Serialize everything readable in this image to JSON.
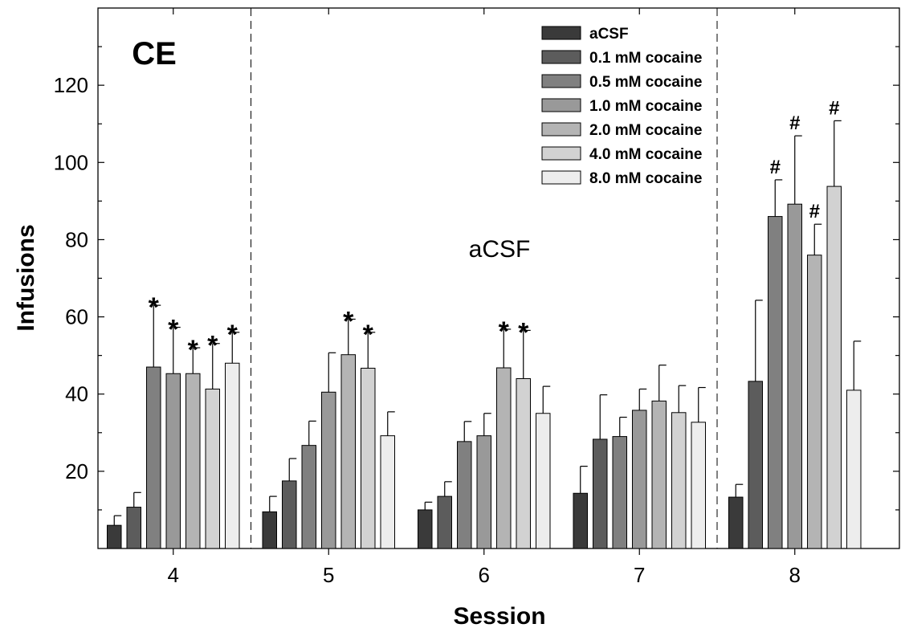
{
  "chart_data": {
    "type": "bar",
    "panel_label": "CE",
    "annotation": "aCSF",
    "xlabel": "Session",
    "ylabel": "Infusions",
    "ylim": [
      0,
      140
    ],
    "yticks": [
      20,
      40,
      60,
      80,
      100,
      120
    ],
    "categories": [
      "4",
      "5",
      "6",
      "7",
      "8"
    ],
    "legend_position": "top-right",
    "series": [
      {
        "name": "aCSF",
        "color": "#3a3a3a",
        "values": [
          6,
          9.5,
          10,
          14.3,
          13.3
        ],
        "errors": [
          2.5,
          4,
          2,
          7,
          3.3
        ],
        "marks": [
          "",
          "",
          "",
          "",
          ""
        ]
      },
      {
        "name": "0.1 mM cocaine",
        "color": "#5c5c5c",
        "values": [
          10.7,
          17.5,
          13.5,
          28.3,
          43.3
        ],
        "errors": [
          3.8,
          5.8,
          3.8,
          11.5,
          21
        ],
        "marks": [
          "",
          "",
          "",
          "",
          ""
        ]
      },
      {
        "name": "0.5 mM cocaine",
        "color": "#808080",
        "values": [
          47,
          26.7,
          27.7,
          29,
          86
        ],
        "errors": [
          16,
          6.3,
          5.2,
          5,
          9.5
        ],
        "marks": [
          "*",
          "",
          "",
          "",
          "#"
        ]
      },
      {
        "name": "1.0 mM cocaine",
        "color": "#999999",
        "values": [
          45.3,
          40.5,
          29.2,
          35.8,
          89.2
        ],
        "errors": [
          12,
          10.2,
          5.8,
          5.5,
          17.7
        ],
        "marks": [
          "*",
          "",
          "",
          "",
          "#"
        ]
      },
      {
        "name": "2.0 mM cocaine",
        "color": "#b4b4b4",
        "values": [
          45.3,
          50.2,
          46.8,
          38.2,
          76
        ],
        "errors": [
          6.7,
          9.2,
          10,
          9.3,
          8
        ],
        "marks": [
          "*",
          "*",
          "*",
          "",
          "#"
        ]
      },
      {
        "name": "4.0 mM cocaine",
        "color": "#d2d2d2",
        "values": [
          41.3,
          46.7,
          44,
          35.2,
          93.8
        ],
        "errors": [
          11.8,
          9.3,
          12.5,
          7,
          17
        ],
        "marks": [
          "*",
          "*",
          "*",
          "",
          "#"
        ]
      },
      {
        "name": "8.0 mM cocaine",
        "color": "#ededed",
        "values": [
          48,
          29.2,
          35,
          32.7,
          41
        ],
        "errors": [
          8,
          6.2,
          7,
          9,
          12.7
        ],
        "marks": [
          "*",
          "",
          "",
          "",
          ""
        ]
      }
    ]
  }
}
